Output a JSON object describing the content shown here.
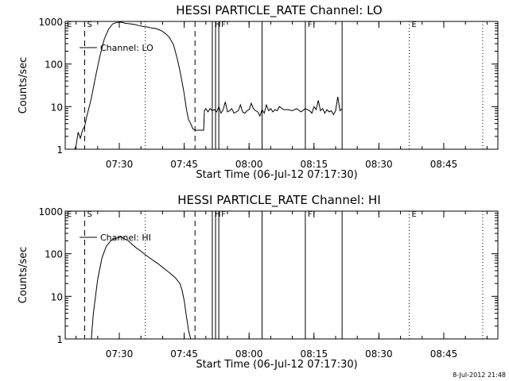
{
  "timestamp": "8-Jul-2012 21:48",
  "chart_data": [
    {
      "type": "line",
      "title": "HESSI PARTICLE_RATE Channel: LO",
      "xlabel": "Start Time (06-Jul-12 07:17:30)",
      "ylabel": "Counts/sec",
      "y_scale": "log",
      "ylim": [
        1,
        1000
      ],
      "y_tick_labels": [
        "1",
        "10",
        "100",
        "1000"
      ],
      "x_tick_labels": [
        "07:30",
        "07:45",
        "08:00",
        "08:15",
        "08:30",
        "08:45"
      ],
      "legend": "Channel: LO",
      "legend_position": "top-left",
      "series": [
        {
          "name": "Channel: LO",
          "x": [
            "07:19:30",
            "07:20:00",
            "07:20:30",
            "07:21:00",
            "07:21:30",
            "07:22:00",
            "07:22:30",
            "07:23:30",
            "07:24:30",
            "07:25:30",
            "07:26:30",
            "07:27:30",
            "07:28:30",
            "07:29:30",
            "07:30:30",
            "07:31:30",
            "07:32:30",
            "07:33:30",
            "07:34:30",
            "07:35:30",
            "07:36:30",
            "07:37:30",
            "07:38:30",
            "07:39:30",
            "07:40:30",
            "07:41:30",
            "07:42:30",
            "07:43:00",
            "07:43:30",
            "07:44:00",
            "07:44:30",
            "07:45:00",
            "07:45:30",
            "07:46:00",
            "07:46:30",
            "07:47:00",
            "07:47:30",
            "07:48:00",
            "07:49:00",
            "07:49:30",
            "07:49:40",
            "07:50:00",
            "07:50:30",
            "07:51:00",
            "07:51:30",
            "07:52:00",
            "07:52:30",
            "07:53:00",
            "07:53:30",
            "07:54:00",
            "07:54:30",
            "07:55:00",
            "07:55:30",
            "07:56:00",
            "07:56:30",
            "07:57:00",
            "07:57:30",
            "07:58:00",
            "07:58:30",
            "07:59:00",
            "07:59:30",
            "08:00:00",
            "08:00:30",
            "08:01:00",
            "08:01:30",
            "08:02:00",
            "08:02:30",
            "08:03:00",
            "08:03:30",
            "08:04:00",
            "08:04:30",
            "08:05:00",
            "08:05:30",
            "08:06:00",
            "08:06:30",
            "08:07:00",
            "08:08:00",
            "08:09:00",
            "08:10:00",
            "08:11:00",
            "08:12:00",
            "08:13:00",
            "08:14:00",
            "08:14:30",
            "08:15:00",
            "08:15:30",
            "08:16:00",
            "08:16:30",
            "08:17:00",
            "08:17:30",
            "08:18:00",
            "08:18:30",
            "08:19:00",
            "08:19:30",
            "08:20:00",
            "08:20:30",
            "08:21:00",
            "08:21:30"
          ],
          "y": [
            0.9,
            1.2,
            2.5,
            1.8,
            2.8,
            3.5,
            6,
            15,
            50,
            150,
            380,
            650,
            880,
            950,
            960,
            900,
            880,
            850,
            800,
            760,
            740,
            700,
            680,
            620,
            540,
            430,
            290,
            190,
            120,
            70,
            38,
            20,
            9,
            5,
            4,
            3,
            2.8,
            2.8,
            2.8,
            2.8,
            8,
            9,
            7.5,
            9,
            8,
            8.5,
            7.5,
            10,
            7,
            8.5,
            13,
            7.5,
            8,
            9,
            7,
            7.5,
            8,
            11,
            7.5,
            7,
            8,
            8.5,
            12,
            9,
            8,
            7.5,
            6,
            8.5,
            7,
            11,
            8,
            9,
            7.5,
            8.5,
            8,
            10,
            8.5,
            8.5,
            8,
            9,
            7.5,
            9,
            8,
            7,
            10,
            8.5,
            14,
            8,
            9,
            7,
            8.5,
            7.5,
            8,
            6.5,
            8,
            17,
            8,
            9
          ]
        }
      ],
      "vlines": [
        {
          "x": "07:22:00",
          "style": "dashed",
          "label": "S"
        },
        {
          "x": "07:36:00",
          "style": "dotted",
          "label": ""
        },
        {
          "x": "07:47:30",
          "style": "dashed",
          "label": ""
        },
        {
          "x": "07:51:30",
          "style": "solid",
          "label": "H"
        },
        {
          "x": "07:52:15",
          "style": "solid",
          "label": ""
        },
        {
          "x": "07:53:00",
          "style": "solid",
          "label": "F"
        },
        {
          "x": "08:03:00",
          "style": "solid",
          "label": ""
        },
        {
          "x": "08:13:00",
          "style": "solid",
          "label": "F"
        },
        {
          "x": "08:21:30",
          "style": "solid",
          "label": ""
        },
        {
          "x": "08:37:00",
          "style": "dotted",
          "label": "E"
        },
        {
          "x": "08:54:00",
          "style": "dotted",
          "label": ""
        }
      ],
      "left_edge_labels": [
        "E"
      ]
    },
    {
      "type": "line",
      "title": "HESSI PARTICLE_RATE Channel: HI",
      "xlabel": "Start Time (06-Jul-12 07:17:30)",
      "ylabel": "Counts/sec",
      "y_scale": "log",
      "ylim": [
        1,
        1000
      ],
      "y_tick_labels": [
        "1",
        "10",
        "100",
        "1000"
      ],
      "x_tick_labels": [
        "07:30",
        "07:45",
        "08:00",
        "08:15",
        "08:30",
        "08:45"
      ],
      "legend": "Channel: HI",
      "legend_position": "top-left",
      "series": [
        {
          "name": "Channel: HI",
          "x": [
            "07:23:30",
            "07:24:00",
            "07:25:00",
            "07:26:00",
            "07:27:00",
            "07:28:00",
            "07:29:00",
            "07:30:00",
            "07:30:30",
            "07:31:00",
            "07:31:30",
            "07:32:00",
            "07:33:00",
            "07:34:00",
            "07:35:00",
            "07:36:00",
            "07:37:00",
            "07:38:00",
            "07:39:00",
            "07:40:00",
            "07:41:00",
            "07:42:00",
            "07:43:00",
            "07:44:00",
            "07:44:30",
            "07:45:00",
            "07:45:30",
            "07:46:00",
            "07:46:30",
            "07:47:00",
            "07:47:30"
          ],
          "y": [
            0.9,
            4,
            25,
            80,
            150,
            200,
            230,
            240,
            250,
            230,
            215,
            205,
            165,
            135,
            115,
            95,
            80,
            68,
            58,
            48,
            40,
            33,
            27,
            20,
            14,
            8,
            3.5,
            1.6,
            1,
            0.9,
            0.8
          ]
        }
      ],
      "vlines": [
        {
          "x": "07:22:00",
          "style": "dashed",
          "label": "S"
        },
        {
          "x": "07:36:00",
          "style": "dotted",
          "label": ""
        },
        {
          "x": "07:47:30",
          "style": "dashed",
          "label": ""
        },
        {
          "x": "07:51:30",
          "style": "solid",
          "label": "H"
        },
        {
          "x": "07:52:15",
          "style": "solid",
          "label": ""
        },
        {
          "x": "07:53:00",
          "style": "solid",
          "label": "F"
        },
        {
          "x": "08:03:00",
          "style": "solid",
          "label": ""
        },
        {
          "x": "08:13:00",
          "style": "solid",
          "label": "F"
        },
        {
          "x": "08:21:30",
          "style": "solid",
          "label": ""
        },
        {
          "x": "08:37:00",
          "style": "dotted",
          "label": "E"
        },
        {
          "x": "08:54:00",
          "style": "dotted",
          "label": ""
        }
      ],
      "left_edge_labels": [
        "E"
      ]
    }
  ]
}
